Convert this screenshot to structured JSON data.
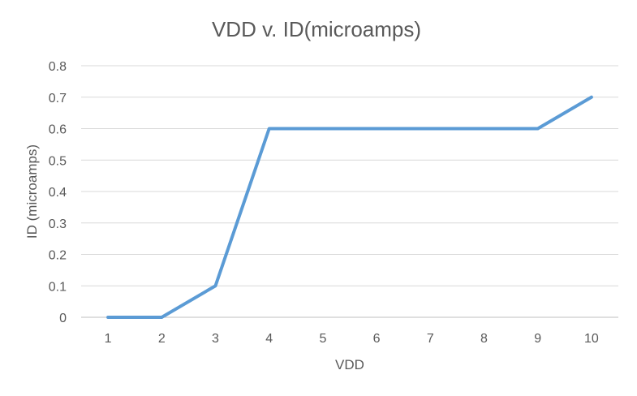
{
  "chart_data": {
    "type": "line",
    "title": "VDD v. ID(microamps)",
    "xlabel": "VDD",
    "ylabel": "ID (microamps)",
    "x": [
      1,
      2,
      3,
      4,
      5,
      6,
      7,
      8,
      9,
      10
    ],
    "series": [
      {
        "values": [
          0,
          0,
          0.1,
          0.6,
          0.6,
          0.6,
          0.6,
          0.6,
          0.6,
          0.7
        ],
        "color": "#5b9bd5"
      }
    ],
    "ylim": [
      0,
      0.8
    ],
    "yticks": [
      "0",
      "0.1",
      "0.2",
      "0.3",
      "0.4",
      "0.5",
      "0.6",
      "0.7",
      "0.8"
    ],
    "xticks": [
      "1",
      "2",
      "3",
      "4",
      "5",
      "6",
      "7",
      "8",
      "9",
      "10"
    ],
    "grid": true,
    "legend": "none"
  }
}
